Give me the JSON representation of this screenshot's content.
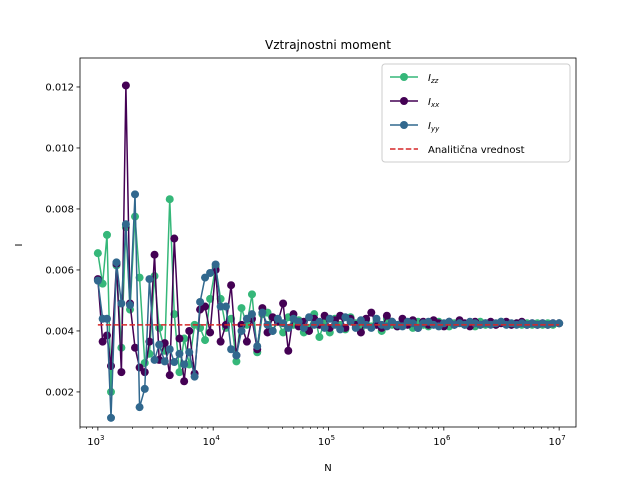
{
  "chart_data": {
    "type": "line",
    "title": "Vztrajnostni moment",
    "xlabel": "N",
    "ylabel": "I",
    "xscale": "log",
    "xlim": [
      700,
      14000000
    ],
    "ylim": [
      0.00085,
      0.01295
    ],
    "x_ticks": [
      {
        "value": 1000,
        "base": "10",
        "exp": "3"
      },
      {
        "value": 10000,
        "base": "10",
        "exp": "4"
      },
      {
        "value": 100000,
        "base": "10",
        "exp": "5"
      },
      {
        "value": 1000000,
        "base": "10",
        "exp": "6"
      },
      {
        "value": 10000000,
        "base": "10",
        "exp": "7"
      }
    ],
    "y_ticks": [
      {
        "value": 0.002,
        "label": "0.002"
      },
      {
        "value": 0.004,
        "label": "0.004"
      },
      {
        "value": 0.006,
        "label": "0.006"
      },
      {
        "value": 0.008,
        "label": "0.008"
      },
      {
        "value": 0.01,
        "label": "0.010"
      },
      {
        "value": 0.012,
        "label": "0.012"
      }
    ],
    "grid": false,
    "legend_position": "top-right",
    "x": [
      1000,
      1100,
      1200,
      1300,
      1450,
      1600,
      1750,
      1900,
      2100,
      2300,
      2550,
      2800,
      3100,
      3400,
      3800,
      4200,
      4600,
      5100,
      5600,
      6200,
      6900,
      7700,
      8500,
      9400,
      10500,
      11600,
      12900,
      14300,
      15900,
      17600,
      19600,
      21700,
      24100,
      26700,
      29600,
      32800,
      36400,
      40400,
      44800,
      49700,
      55100,
      61100,
      67800,
      75200,
      83400,
      92500,
      102600,
      113800,
      126200,
      140000,
      155300,
      172200,
      191000,
      211900,
      235000,
      260700,
      289200,
      320800,
      355800,
      394700,
      437800,
      485600,
      538600,
      597400,
      662600,
      735000,
      815200,
      904200,
      1003000,
      1112400,
      1233900,
      1368600,
      1518100,
      1683800,
      1867700,
      2071600,
      2297800,
      2548700,
      2827000,
      3135700,
      3478100,
      3857800,
      4279000,
      4746300,
      5264500,
      5839300,
      6477000,
      7184200,
      7968600,
      8838700,
      10000000
    ],
    "series": [
      {
        "name": "I_zz",
        "color": "#35b779",
        "values": [
          0.00655,
          0.00555,
          0.00715,
          0.002,
          0.00615,
          0.00345,
          0.0074,
          0.0047,
          0.00775,
          0.00575,
          0.00295,
          0.00325,
          0.0058,
          0.0041,
          0.00335,
          0.00832,
          0.00455,
          0.00265,
          0.00375,
          0.0029,
          0.0042,
          0.0041,
          0.0037,
          0.00505,
          0.0061,
          0.00505,
          0.0041,
          0.0044,
          0.003,
          0.00475,
          0.0042,
          0.0052,
          0.0033,
          0.00455,
          0.0046,
          0.004,
          0.0043,
          0.00395,
          0.00445,
          0.0042,
          0.00435,
          0.00395,
          0.0041,
          0.00455,
          0.0038,
          0.0043,
          0.00395,
          0.0044,
          0.0042,
          0.00405,
          0.00445,
          0.00425,
          0.0041,
          0.00435,
          0.00415,
          0.0043,
          0.004,
          0.0044,
          0.0042,
          0.00415,
          0.0043,
          0.00425,
          0.0041,
          0.0043,
          0.0042,
          0.00415,
          0.00425,
          0.0043,
          0.0042,
          0.00415,
          0.00425,
          0.0043,
          0.0042,
          0.00425,
          0.00415,
          0.0043,
          0.0042,
          0.00425,
          0.0042,
          0.0043,
          0.00425,
          0.0042,
          0.00425,
          0.0042,
          0.00425,
          0.0042,
          0.00425,
          0.0042,
          0.00425,
          0.0042,
          0.00425
        ]
      },
      {
        "name": "I_xx",
        "color": "#440154",
        "values": [
          0.0057,
          0.00365,
          0.00385,
          0.00285,
          0.0062,
          0.00265,
          0.01205,
          0.0049,
          0.00345,
          0.0028,
          0.00265,
          0.00365,
          0.0065,
          0.00305,
          0.0036,
          0.00255,
          0.00703,
          0.00375,
          0.00235,
          0.004,
          0.0026,
          0.0047,
          0.0048,
          0.00395,
          0.006,
          0.00365,
          0.0042,
          0.0055,
          0.0032,
          0.0042,
          0.00365,
          0.0044,
          0.0034,
          0.00475,
          0.00395,
          0.00445,
          0.0043,
          0.0049,
          0.00335,
          0.00455,
          0.00415,
          0.0043,
          0.004,
          0.0044,
          0.0042,
          0.0045,
          0.0041,
          0.00435,
          0.0045,
          0.0041,
          0.0044,
          0.0042,
          0.00395,
          0.0044,
          0.0046,
          0.0042,
          0.0041,
          0.0045,
          0.0043,
          0.00415,
          0.0044,
          0.0042,
          0.00435,
          0.0041,
          0.0043,
          0.0042,
          0.00435,
          0.00425,
          0.00415,
          0.0043,
          0.0042,
          0.00435,
          0.00425,
          0.00415,
          0.0043,
          0.0042,
          0.00425,
          0.0043,
          0.0042,
          0.00425,
          0.0043,
          0.0042,
          0.00425,
          0.0043,
          0.0042,
          0.00425,
          0.0042,
          0.00425,
          0.0042,
          0.00425,
          0.00425
        ]
      },
      {
        "name": "I_yy",
        "color": "#31688e",
        "values": [
          0.00565,
          0.0044,
          0.0044,
          0.00115,
          0.00625,
          0.0049,
          0.0075,
          0.00485,
          0.00848,
          0.0015,
          0.0021,
          0.0057,
          0.00305,
          0.00355,
          0.003,
          0.0034,
          0.00298,
          0.00325,
          0.0029,
          0.0033,
          0.0025,
          0.00495,
          0.00575,
          0.0059,
          0.00618,
          0.0048,
          0.0048,
          0.0034,
          0.0032,
          0.004,
          0.0044,
          0.00455,
          0.0035,
          0.0046,
          0.0042,
          0.004,
          0.0044,
          0.00425,
          0.0041,
          0.0044,
          0.0043,
          0.0041,
          0.00445,
          0.0042,
          0.0043,
          0.0041,
          0.0044,
          0.0042,
          0.00405,
          0.00445,
          0.0043,
          0.0041,
          0.00435,
          0.0042,
          0.0041,
          0.0044,
          0.0042,
          0.00415,
          0.0043,
          0.0042,
          0.00415,
          0.0043,
          0.00425,
          0.0041,
          0.00425,
          0.0043,
          0.0042,
          0.00415,
          0.00425,
          0.0043,
          0.0042,
          0.00425,
          0.0042,
          0.0043,
          0.00425,
          0.0042,
          0.00425,
          0.0042,
          0.00425,
          0.0043,
          0.0042,
          0.00425,
          0.0042,
          0.00425,
          0.0042,
          0.00425,
          0.0042,
          0.00425,
          0.0042,
          0.00425,
          0.00425
        ]
      }
    ],
    "reference_line": {
      "name": "Analitična vrednost",
      "value": 0.0042,
      "x_range": [
        1000,
        10000000
      ],
      "color": "#d62728",
      "style": "dashed"
    },
    "legend": [
      {
        "key": "I_zz",
        "main": "I",
        "sub": "zz",
        "color": "#35b779",
        "kind": "marker-line"
      },
      {
        "key": "I_xx",
        "main": "I",
        "sub": "xx",
        "color": "#440154",
        "kind": "marker-line"
      },
      {
        "key": "I_yy",
        "main": "I",
        "sub": "yy",
        "color": "#31688e",
        "kind": "marker-line"
      },
      {
        "key": "analytic",
        "main": "Analitična vrednost",
        "sub": "",
        "color": "#d62728",
        "kind": "dashed-line"
      }
    ]
  }
}
